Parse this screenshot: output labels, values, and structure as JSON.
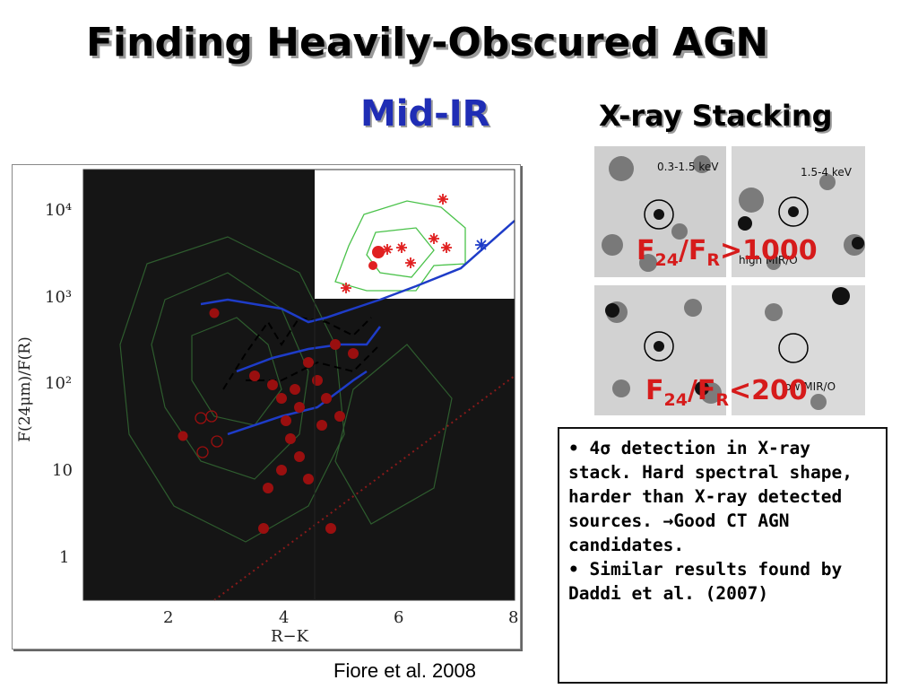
{
  "slide": {
    "title": "Finding Heavily-Obscured AGN",
    "subtitle_left": "Mid-IR",
    "subtitle_right": "X-ray Stacking",
    "citation": "Fiore et al. 2008"
  },
  "plot": {
    "ylabel": "F(24μm)/F(R)",
    "xlabel": "R−K",
    "y_ticks": [
      "10⁴",
      "10³",
      "10²",
      "10",
      "1"
    ],
    "x_ticks": [
      "2",
      "4",
      "6",
      "8"
    ],
    "colors": {
      "background": "#151515",
      "inset": "#ffffff",
      "points": "#c0160f",
      "track": "#1e3cc8",
      "contours": "#2e7a2e"
    }
  },
  "stacking": {
    "panels": [
      {
        "energy": "0.3-1.5 keV"
      },
      {
        "energy": "1.5-4 keV"
      },
      {
        "side_label": "high MIR/O"
      },
      {
        "side_label": "low MIR/O"
      }
    ],
    "caption_high": {
      "f": "F",
      "s1": "24",
      "slash": "/F",
      "s2": "R",
      "tail": ">1000"
    },
    "caption_low": {
      "f": "F",
      "s1": "24",
      "slash": "/F",
      "s2": "R",
      "tail": "<200"
    }
  },
  "notes": [
    "• 4σ detection in X-ray stack. Hard spectral shape, harder than X-ray detected sources. →Good CT AGN candidates.",
    "• Similar results found by Daddi et al. (2007)"
  ]
}
